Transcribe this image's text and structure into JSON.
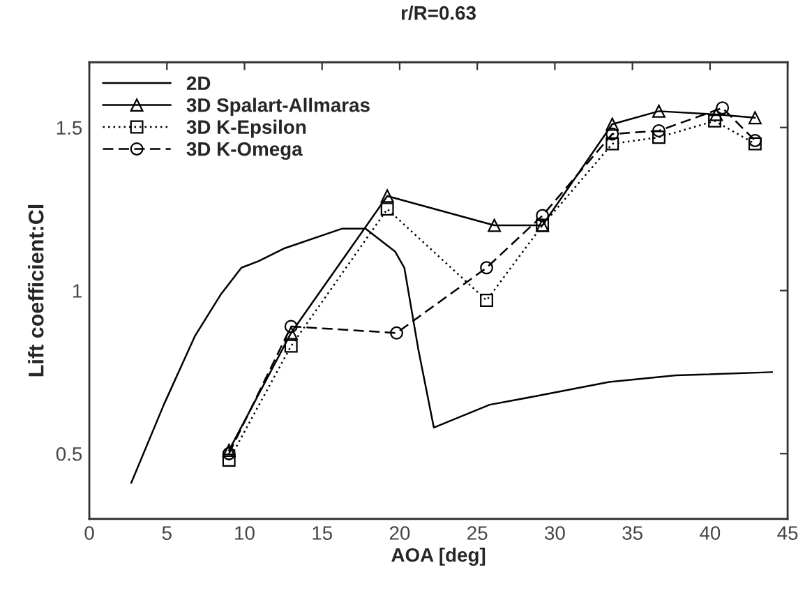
{
  "chart_data": {
    "type": "line",
    "title": "r/R=0.63",
    "xlabel": "AOA [deg]",
    "ylabel": "Lift coefficient:Cl",
    "xlim": [
      0,
      45
    ],
    "xticks": [
      0,
      5,
      10,
      15,
      20,
      25,
      30,
      35,
      40,
      45
    ],
    "ylim": [
      0.3,
      1.7
    ],
    "yticks": [
      0.5,
      1,
      1.5
    ],
    "grid": false,
    "legend": "top left",
    "series": [
      {
        "name": "2D",
        "color": "#000000",
        "marker": "none",
        "line_style": "solid",
        "x": [
          2.7,
          4.8,
          6.8,
          8.5,
          9.8,
          10.9,
          12.6,
          16.3,
          17.8,
          19.7,
          20.3,
          21.2,
          22.2,
          25.8,
          29.2,
          33.5,
          37.8,
          44
        ],
        "values": [
          0.41,
          0.65,
          0.86,
          0.99,
          1.07,
          1.09,
          1.13,
          1.19,
          1.19,
          1.12,
          1.07,
          0.82,
          0.58,
          0.65,
          0.68,
          0.72,
          0.74,
          0.75
        ]
      },
      {
        "name": "3D Spalart-Allmaras",
        "color": "#000000",
        "marker": "triangle",
        "line_style": "solid",
        "x": [
          9,
          13,
          19.2,
          26.1,
          29.2,
          33.7,
          36.7,
          40.4,
          42.9
        ],
        "values": [
          0.51,
          0.87,
          1.29,
          1.2,
          1.2,
          1.51,
          1.55,
          1.54,
          1.53
        ]
      },
      {
        "name": "3D K-Epsilon",
        "color": "#000000",
        "marker": "square",
        "line_style": "dotted",
        "x": [
          9,
          13,
          19.2,
          25.6,
          29.2,
          33.7,
          36.7,
          40.3,
          42.9
        ],
        "values": [
          0.48,
          0.83,
          1.25,
          0.97,
          1.2,
          1.45,
          1.47,
          1.52,
          1.45
        ]
      },
      {
        "name": "3D K-Omega",
        "color": "#000000",
        "marker": "circle",
        "line_style": "dashed",
        "x": [
          9,
          13,
          19.8,
          25.6,
          29.2,
          33.7,
          36.7,
          40.8,
          42.9
        ],
        "values": [
          0.5,
          0.89,
          0.87,
          1.07,
          1.23,
          1.48,
          1.49,
          1.56,
          1.46
        ]
      }
    ]
  }
}
